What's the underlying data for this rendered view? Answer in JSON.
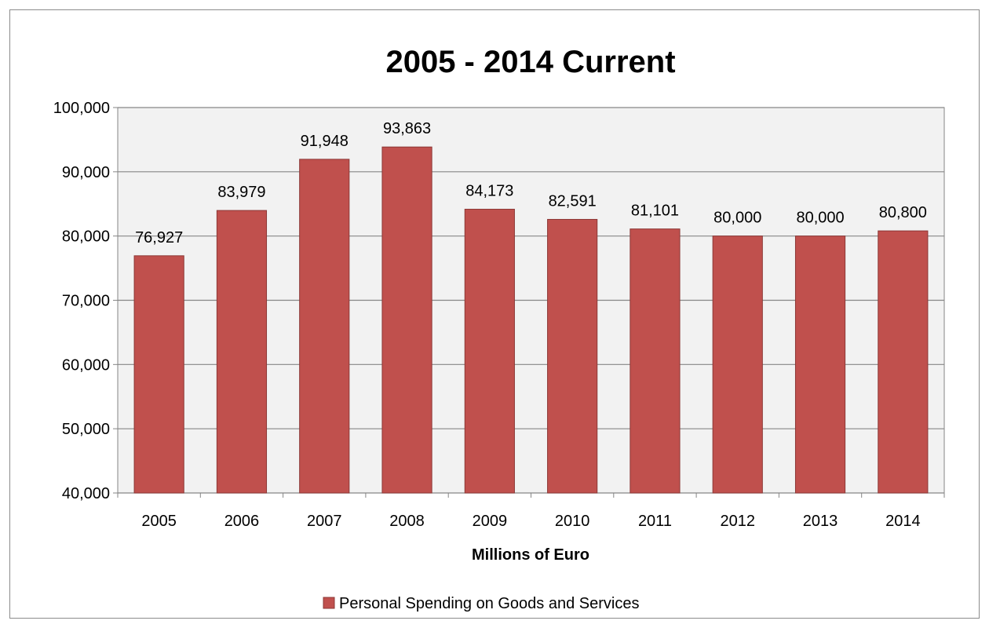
{
  "chart_data": {
    "type": "bar",
    "title": "2005 - 2014 Current",
    "xlabel": "Millions of Euro",
    "ylabel": "",
    "categories": [
      "2005",
      "2006",
      "2007",
      "2008",
      "2009",
      "2010",
      "2011",
      "2012",
      "2013",
      "2014"
    ],
    "series": [
      {
        "name": "Personal Spending on Goods and Services",
        "values": [
          76927,
          83979,
          91948,
          93863,
          84173,
          82591,
          81101,
          80000,
          80000,
          80800
        ],
        "value_labels": [
          "76,927",
          "83,979",
          "91,948",
          "93,863",
          "84,173",
          "82,591",
          "81,101",
          "80,000",
          "80,000",
          "80,800"
        ]
      }
    ],
    "ylim": [
      40000,
      100000
    ],
    "y_ticks": [
      40000,
      50000,
      60000,
      70000,
      80000,
      90000,
      100000
    ],
    "y_tick_labels": [
      "40,000",
      "50,000",
      "60,000",
      "70,000",
      "80,000",
      "90,000",
      "100,000"
    ],
    "grid": true,
    "legend_position": "bottom",
    "colors": {
      "bar_fill": "#c0504d",
      "bar_stroke": "#8c3836",
      "plot_background": "#f2f2f2",
      "gridline": "#868686"
    }
  }
}
